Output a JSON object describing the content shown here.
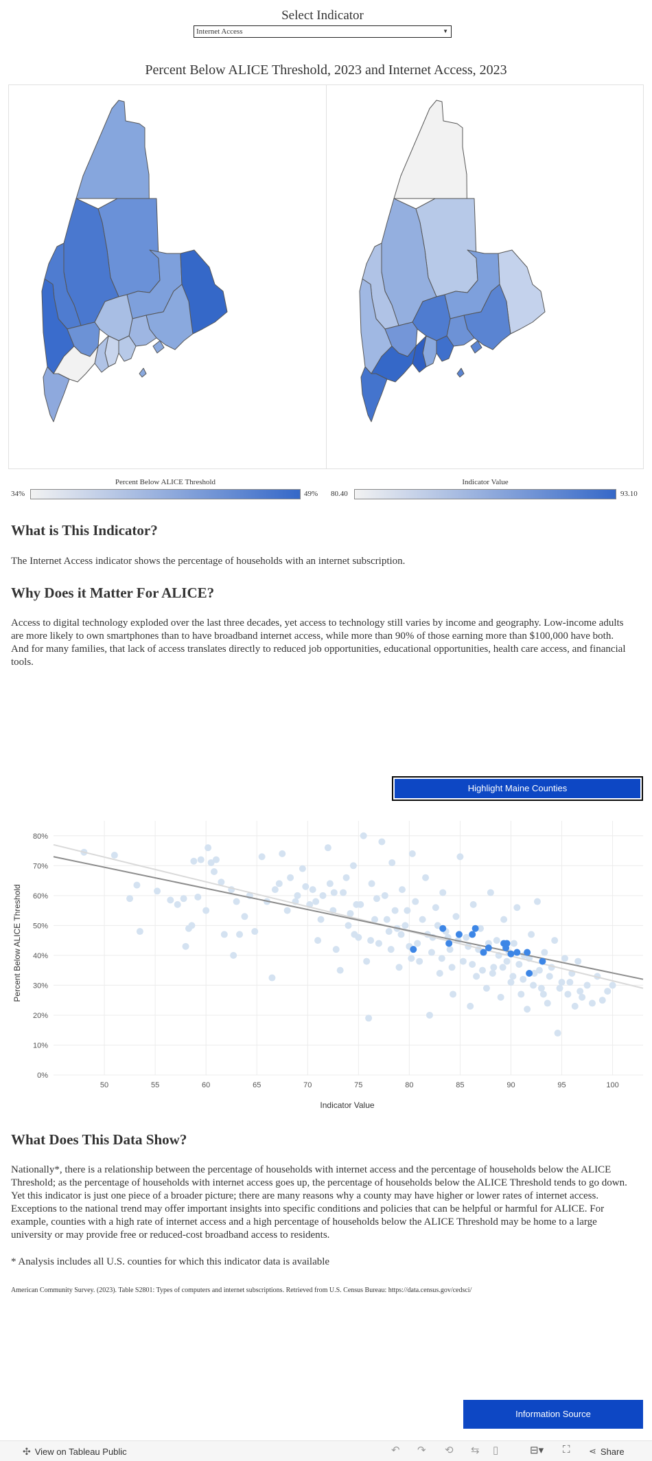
{
  "selector": {
    "title": "Select Indicator",
    "value": "Internet Access"
  },
  "maps": {
    "title": "Percent Below ALICE Threshold, 2023 and Internet Access, 2023",
    "left_legend": {
      "title": "Percent Below ALICE Threshold",
      "min": "34%",
      "max": "49%"
    },
    "right_legend": {
      "title": "Indicator Value",
      "min": "80.40",
      "max": "93.10"
    },
    "color_low": "#f2f2f2",
    "color_high": "#3568c8"
  },
  "sections": {
    "what_heading": "What is This Indicator?",
    "what_body": "The Internet Access indicator shows the percentage of households with an internet subscription.",
    "why_heading": "Why Does it Matter For ALICE?",
    "why_body": "Access to digital technology exploded over the last three decades, yet access to technology still varies by income and geography. Low-income adults are more likely to own smartphones than to have broadband internet access, while more than 90% of those earning more than $100,000 have both. And for many families, that lack of access translates directly to reduced job opportunities, educational opportunities, health care access, and financial tools.",
    "show_heading": "What Does This Data Show?",
    "show_body": "Nationally*, there is a relationship between the percentage of households with internet access and the percentage of households below the ALICE Threshold; as the percentage of households with internet access goes up, the percentage of households below the ALICE Threshold tends to go down. Yet this indicator is just one piece of a broader picture; there are many reasons why a county may have higher or lower rates of internet access. Exceptions to the national trend may offer important insights into specific conditions and policies that can be helpful or harmful for ALICE. For example, counties with a high rate of internet access and a high percentage of households below the ALICE Threshold may be home to a large university or may provide free or reduced-cost broadband access to residents.",
    "footnote": "* Analysis includes all U.S. counties for which this indicator data is available",
    "citation": "American Community Survey. (2023). Table S2801: Types of computers and internet subscriptions. Retrieved from U.S. Census Bureau: https://data.census.gov/cedsci/"
  },
  "buttons": {
    "highlight": "Highlight Maine Counties",
    "info_source": "Information Source"
  },
  "toolbar": {
    "view_on": "View on Tableau Public",
    "share": "Share"
  },
  "chart_data": {
    "type": "scatter",
    "xlabel": "Indicator Value",
    "ylabel": "Percent Below ALICE Threshold",
    "xlim": [
      45,
      103
    ],
    "ylim": [
      0,
      85
    ],
    "x_ticks": [
      50,
      55,
      60,
      65,
      70,
      75,
      80,
      85,
      90,
      95,
      100
    ],
    "y_ticks": [
      "0%",
      "10%",
      "20%",
      "30%",
      "40%",
      "50%",
      "60%",
      "70%",
      "80%"
    ],
    "y_tick_values": [
      0,
      10,
      20,
      30,
      40,
      50,
      60,
      70,
      80
    ],
    "grid": true,
    "background_color": "#d4e2f1",
    "highlight_color": "#3d86e6",
    "trend_lines": [
      {
        "x": [
          45,
          103
        ],
        "y": [
          73,
          32
        ],
        "color": "#8c8c8c"
      },
      {
        "x": [
          45,
          103
        ],
        "y": [
          77,
          29
        ],
        "color": "#d9d9d9"
      }
    ],
    "series": [
      {
        "values": [
          [
            48,
            74.5
          ],
          [
            51,
            73.5
          ],
          [
            52.5,
            59
          ],
          [
            53.2,
            63.5
          ],
          [
            53.5,
            48
          ],
          [
            55.2,
            61.5
          ],
          [
            56.5,
            58.5
          ],
          [
            57.2,
            57
          ],
          [
            57.8,
            59
          ],
          [
            58,
            43
          ],
          [
            58.3,
            49
          ],
          [
            58.6,
            50
          ],
          [
            58.8,
            71.5
          ],
          [
            59.5,
            72
          ],
          [
            59.2,
            59.5
          ],
          [
            60,
            55
          ],
          [
            60.2,
            76
          ],
          [
            60.5,
            71
          ],
          [
            60.8,
            68
          ],
          [
            61,
            72
          ],
          [
            61.5,
            64.5
          ],
          [
            61.8,
            47
          ],
          [
            62.5,
            62
          ],
          [
            62.7,
            40
          ],
          [
            63,
            58
          ],
          [
            63.3,
            47
          ],
          [
            63.8,
            53
          ],
          [
            64.3,
            60
          ],
          [
            64.8,
            48
          ],
          [
            65.5,
            73
          ],
          [
            66,
            58
          ],
          [
            66.5,
            32.5
          ],
          [
            66.8,
            62
          ],
          [
            67.5,
            74
          ],
          [
            68,
            55
          ],
          [
            68.3,
            66
          ],
          [
            69,
            60
          ],
          [
            69.5,
            69
          ],
          [
            70.2,
            57
          ],
          [
            70.5,
            62
          ],
          [
            71,
            45
          ],
          [
            71.3,
            52
          ],
          [
            72,
            76
          ],
          [
            72.2,
            64
          ],
          [
            72.5,
            55
          ],
          [
            72.8,
            42
          ],
          [
            73.2,
            35
          ],
          [
            73.5,
            61
          ],
          [
            74,
            50
          ],
          [
            74.5,
            70
          ],
          [
            74.8,
            57
          ],
          [
            75,
            46
          ],
          [
            75.5,
            80
          ],
          [
            75.8,
            38
          ],
          [
            76,
            19
          ],
          [
            76.3,
            64
          ],
          [
            76.6,
            52
          ],
          [
            77,
            44
          ],
          [
            77.3,
            78
          ],
          [
            77.6,
            60
          ],
          [
            78,
            48
          ],
          [
            78.3,
            71
          ],
          [
            78.6,
            55
          ],
          [
            79,
            36
          ],
          [
            79.3,
            62
          ],
          [
            79.6,
            50
          ],
          [
            80,
            43
          ],
          [
            80.3,
            74
          ],
          [
            80.6,
            58
          ],
          [
            81,
            38
          ],
          [
            81.3,
            52
          ],
          [
            81.6,
            66
          ],
          [
            82,
            20
          ],
          [
            82.3,
            46
          ],
          [
            82.6,
            56
          ],
          [
            83,
            34
          ],
          [
            83.3,
            61
          ],
          [
            83.6,
            48
          ],
          [
            84,
            42
          ],
          [
            84.3,
            27
          ],
          [
            84.6,
            53
          ],
          [
            85,
            73
          ],
          [
            85.3,
            38
          ],
          [
            85.6,
            46
          ],
          [
            86,
            23
          ],
          [
            86.3,
            57
          ],
          [
            86.6,
            33
          ],
          [
            87,
            49
          ],
          [
            87.3,
            41
          ],
          [
            87.6,
            29
          ],
          [
            88,
            61
          ],
          [
            88.3,
            36
          ],
          [
            88.6,
            45
          ],
          [
            89,
            26
          ],
          [
            89.3,
            52
          ],
          [
            89.6,
            38
          ],
          [
            90,
            31
          ],
          [
            90.3,
            44
          ],
          [
            90.6,
            56
          ],
          [
            91,
            27
          ],
          [
            91.3,
            40
          ],
          [
            91.6,
            22
          ],
          [
            92,
            47
          ],
          [
            92.3,
            34
          ],
          [
            92.6,
            58
          ],
          [
            93,
            29
          ],
          [
            93.3,
            41
          ],
          [
            93.6,
            24
          ],
          [
            94,
            36
          ],
          [
            94.3,
            45
          ],
          [
            94.6,
            14
          ],
          [
            95,
            31
          ],
          [
            95.3,
            39
          ],
          [
            95.6,
            27
          ],
          [
            96,
            34
          ],
          [
            96.3,
            23
          ],
          [
            96.6,
            38
          ],
          [
            97,
            26
          ],
          [
            97.5,
            30
          ],
          [
            98,
            24
          ],
          [
            98.5,
            33
          ],
          [
            99,
            25
          ],
          [
            99.5,
            28
          ],
          [
            100,
            30
          ],
          [
            69.8,
            63
          ],
          [
            70.8,
            58
          ],
          [
            73.8,
            66
          ],
          [
            76.8,
            59
          ],
          [
            79.8,
            55
          ],
          [
            82.8,
            50
          ],
          [
            84.8,
            45
          ],
          [
            86.8,
            42
          ],
          [
            88.8,
            40
          ],
          [
            90.8,
            37
          ],
          [
            92.8,
            35
          ],
          [
            71.5,
            60
          ],
          [
            74.2,
            54
          ],
          [
            77.8,
            52
          ],
          [
            81.8,
            47
          ],
          [
            85.8,
            43
          ],
          [
            89.8,
            41
          ],
          [
            93.8,
            33
          ],
          [
            67.2,
            64
          ],
          [
            68.8,
            58
          ],
          [
            72.6,
            61
          ],
          [
            75.2,
            57
          ],
          [
            78.8,
            49
          ],
          [
            83.8,
            46
          ],
          [
            87.8,
            44
          ],
          [
            91.8,
            39
          ],
          [
            95.8,
            31
          ],
          [
            80.8,
            44
          ],
          [
            82.2,
            41
          ],
          [
            86.2,
            37
          ],
          [
            88.2,
            34
          ],
          [
            90.2,
            33
          ],
          [
            92.2,
            30
          ],
          [
            94.8,
            29
          ],
          [
            79.2,
            47
          ],
          [
            83.2,
            39
          ],
          [
            87.2,
            35
          ],
          [
            89.2,
            36
          ],
          [
            91.2,
            32
          ],
          [
            93.2,
            27
          ],
          [
            96.8,
            28
          ],
          [
            74.6,
            47
          ],
          [
            76.2,
            45
          ],
          [
            78.2,
            42
          ],
          [
            80.2,
            39
          ],
          [
            84.2,
            36
          ]
        ]
      },
      {
        "name": "Maine Counties",
        "values": [
          [
            80.4,
            42
          ],
          [
            83.3,
            49
          ],
          [
            83.9,
            44
          ],
          [
            84.9,
            47
          ],
          [
            86.2,
            47
          ],
          [
            86.5,
            49
          ],
          [
            87.3,
            41
          ],
          [
            87.8,
            42.5
          ],
          [
            89.3,
            44
          ],
          [
            89.5,
            42.5
          ],
          [
            89.6,
            44
          ],
          [
            90,
            40.5
          ],
          [
            90.6,
            41
          ],
          [
            91.6,
            41
          ],
          [
            91.8,
            34
          ],
          [
            93.1,
            38
          ]
        ]
      }
    ]
  }
}
